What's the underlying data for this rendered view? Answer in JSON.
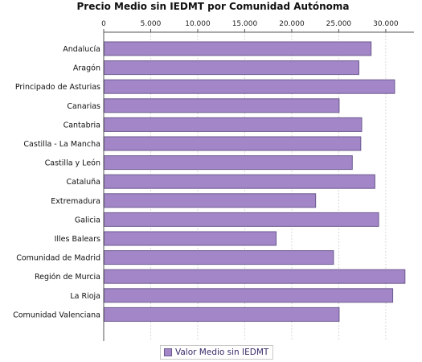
{
  "chart_data": {
    "type": "bar",
    "orientation": "horizontal",
    "title": "Precio Medio sin IEDMT por Comunidad Autónoma",
    "categories": [
      "Andalucía",
      "Aragón",
      "Principado de Asturias",
      "Canarias",
      "Cantabria",
      "Castilla - La Mancha",
      "Castilla y León",
      "Cataluña",
      "Extremadura",
      "Galicia",
      "Illes Balears",
      "Comunidad de Madrid",
      "Región de Murcia",
      "La Rioja",
      "Comunidad Valenciana"
    ],
    "series": [
      {
        "name": "Valor Medio sin IEDMT",
        "values": [
          28400,
          27100,
          30900,
          25000,
          27400,
          27300,
          26400,
          28800,
          22500,
          29200,
          18300,
          24400,
          32000,
          30700,
          25000
        ]
      }
    ],
    "xlim": [
      0,
      33000
    ],
    "xticks": [
      0,
      5000,
      10000,
      15000,
      20000,
      25000,
      30000
    ],
    "xtick_labels": [
      "0",
      "5.000",
      "10.000",
      "15.000",
      "20.000",
      "25.000",
      "30.000"
    ],
    "grid": true,
    "legend_position": "bottom"
  },
  "colors": {
    "bar_fill": "#a386c8",
    "bar_stroke": "#6b5a8e",
    "grid": "#d8d8d8",
    "axis": "#555555"
  }
}
